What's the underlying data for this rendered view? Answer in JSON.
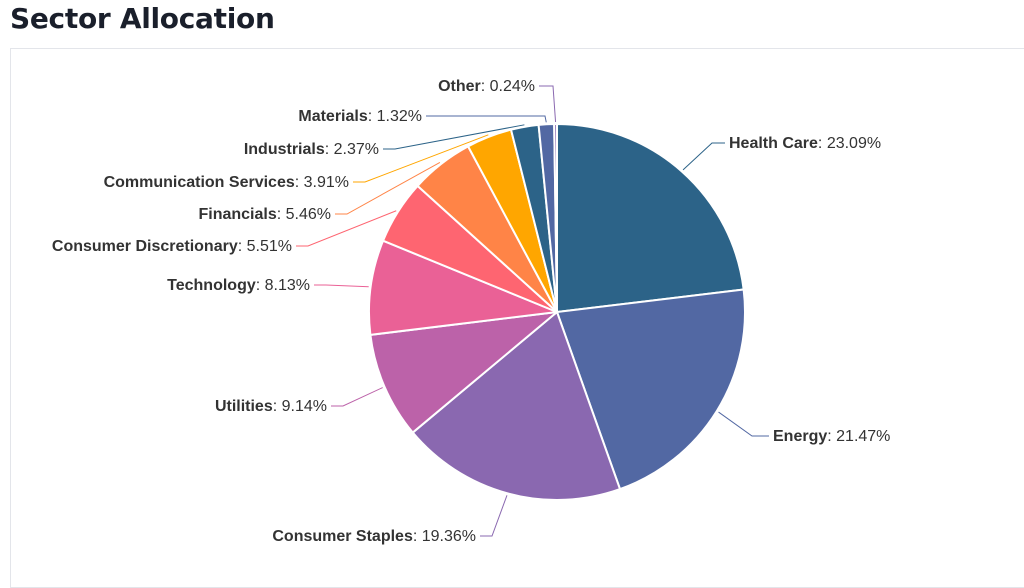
{
  "title": "Sector Allocation",
  "chart_data": {
    "type": "pie",
    "title": "Sector Allocation",
    "start_angle": "top, clockwise",
    "slices": [
      {
        "label": "Health Care",
        "value": 23.09,
        "display": "23.09%",
        "color": "#2c6388"
      },
      {
        "label": "Energy",
        "value": 21.47,
        "display": "21.47%",
        "color": "#5268a3"
      },
      {
        "label": "Consumer Staples",
        "value": 19.36,
        "display": "19.36%",
        "color": "#8a68b0"
      },
      {
        "label": "Utilities",
        "value": 9.14,
        "display": "9.14%",
        "color": "#bc62a9"
      },
      {
        "label": "Technology",
        "value": 8.13,
        "display": "8.13%",
        "color": "#ea6196"
      },
      {
        "label": "Consumer Discretionary",
        "value": 5.51,
        "display": "5.51%",
        "color": "#fe6571"
      },
      {
        "label": "Financials",
        "value": 5.46,
        "display": "5.46%",
        "color": "#ff8447"
      },
      {
        "label": "Communication Services",
        "value": 3.91,
        "display": "3.91%",
        "color": "#ffa600"
      },
      {
        "label": "Industrials",
        "value": 2.37,
        "display": "2.37%",
        "color": "#2c6388"
      },
      {
        "label": "Materials",
        "value": 1.32,
        "display": "1.32%",
        "color": "#5268a3"
      },
      {
        "label": "Other",
        "value": 0.24,
        "display": "0.24%",
        "color": "#8a68b0"
      }
    ]
  }
}
